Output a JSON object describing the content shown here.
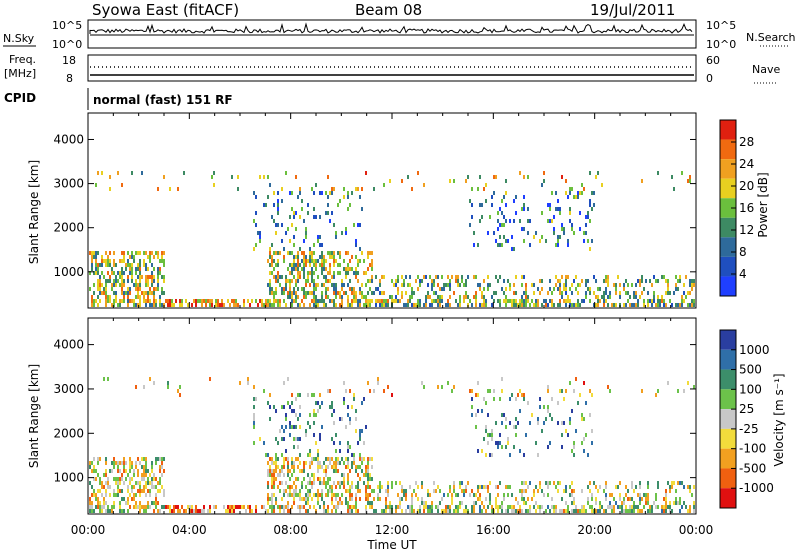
{
  "header": {
    "station": "Syowa East (fitACF)",
    "beam": "Beam 08",
    "date": "19/Jul/2011"
  },
  "status_panels": {
    "nsky_label": "N.Sky",
    "nsky_ticks": [
      "10^5",
      "10^0"
    ],
    "nsearch_label": "N.Search",
    "nsearch_ticks": [
      "10^5",
      "10^0"
    ],
    "freq_label_line1": "Freq.",
    "freq_label_line2": "[MHz]",
    "freq_ticks": [
      "18",
      "8"
    ],
    "nave_label": "Nave",
    "nave_ticks": [
      "60",
      "0"
    ],
    "cpid_label": "CPID",
    "cpid_value": "normal (fast) 151 RF"
  },
  "colors": {
    "power_scale": [
      "#1f3fff",
      "#1f4fbf",
      "#2e6a9b",
      "#3d8a63",
      "#6bbf3d",
      "#e8d020",
      "#f0a020",
      "#f06a10",
      "#e02010"
    ],
    "velocity_scale": [
      "#2a3ea0",
      "#2f6fa8",
      "#3c8e6a",
      "#6cc24a",
      "#c8c8c8",
      "#f2dc3c",
      "#f2a020",
      "#f06010",
      "#e01010"
    ]
  },
  "chart_data": [
    {
      "type": "heatmap",
      "name": "Power",
      "ylabel": "Slant Range [km]",
      "yticks": [
        1000,
        2000,
        3000,
        4000
      ],
      "ylim": [
        180,
        4600
      ],
      "xlim": [
        0,
        24
      ],
      "colorbar_label": "Power [dB]",
      "colorbar_ticks": [
        4,
        8,
        12,
        16,
        20,
        24,
        28
      ],
      "colorbar_range": [
        0,
        32
      ]
    },
    {
      "type": "heatmap",
      "name": "Velocity",
      "ylabel": "Slant Range [km]",
      "yticks": [
        1000,
        2000,
        3000,
        4000
      ],
      "ylim": [
        180,
        4600
      ],
      "xlim": [
        0,
        24
      ],
      "xlabel": "Time UT",
      "xticks": [
        "00:00",
        "04:00",
        "08:00",
        "12:00",
        "16:00",
        "20:00",
        "00:00"
      ],
      "colorbar_label": "Velocity [m s⁻¹]",
      "colorbar_ticks": [
        "1000",
        "500",
        "100",
        "25",
        "-25",
        "-100",
        "-500",
        "-1000"
      ]
    }
  ]
}
